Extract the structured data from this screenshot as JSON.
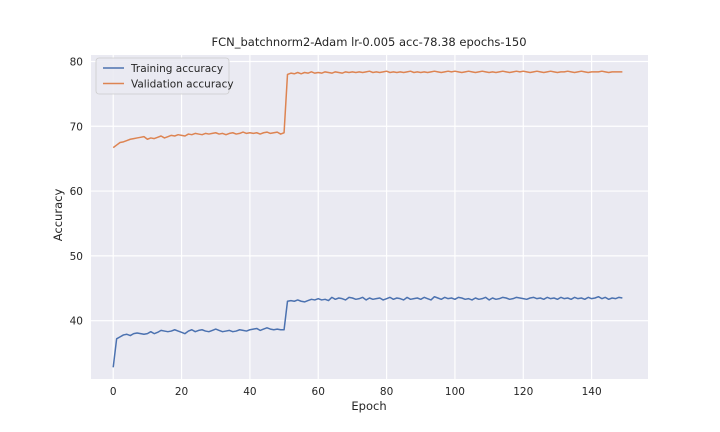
{
  "chart_data": {
    "type": "line",
    "title": "FCN_batchnorm2-Adam lr-0.005 acc-78.38 epochs-150",
    "xlabel": "Epoch",
    "ylabel": "Accuracy",
    "xlim": [
      -6.5,
      156.5
    ],
    "ylim": [
      31,
      81
    ],
    "xticks": [
      0,
      20,
      40,
      60,
      80,
      100,
      120,
      140
    ],
    "yticks": [
      40,
      50,
      60,
      70,
      80
    ],
    "grid": true,
    "legend_position": "top-left",
    "series": [
      {
        "name": "Training accuracy",
        "color": "#4c72b0",
        "values": [
          32.8,
          37.2,
          37.5,
          37.8,
          37.9,
          37.7,
          38.0,
          38.1,
          38.0,
          37.9,
          38.0,
          38.3,
          38.0,
          38.2,
          38.5,
          38.4,
          38.3,
          38.4,
          38.6,
          38.4,
          38.2,
          38.0,
          38.4,
          38.6,
          38.3,
          38.5,
          38.6,
          38.4,
          38.3,
          38.5,
          38.7,
          38.5,
          38.3,
          38.4,
          38.5,
          38.3,
          38.4,
          38.6,
          38.5,
          38.4,
          38.6,
          38.7,
          38.8,
          38.5,
          38.7,
          38.9,
          38.7,
          38.6,
          38.7,
          38.6,
          38.6,
          43.0,
          43.1,
          43.0,
          43.2,
          43.0,
          42.9,
          43.1,
          43.3,
          43.2,
          43.4,
          43.2,
          43.3,
          43.1,
          43.6,
          43.3,
          43.5,
          43.4,
          43.2,
          43.6,
          43.5,
          43.3,
          43.4,
          43.6,
          43.2,
          43.5,
          43.3,
          43.4,
          43.5,
          43.2,
          43.4,
          43.6,
          43.3,
          43.5,
          43.4,
          43.2,
          43.6,
          43.3,
          43.4,
          43.5,
          43.3,
          43.6,
          43.4,
          43.2,
          43.7,
          43.5,
          43.3,
          43.6,
          43.4,
          43.5,
          43.3,
          43.6,
          43.5,
          43.3,
          43.4,
          43.2,
          43.5,
          43.3,
          43.4,
          43.6,
          43.2,
          43.5,
          43.3,
          43.4,
          43.6,
          43.5,
          43.3,
          43.4,
          43.6,
          43.5,
          43.4,
          43.3,
          43.5,
          43.6,
          43.4,
          43.5,
          43.3,
          43.6,
          43.4,
          43.5,
          43.3,
          43.6,
          43.4,
          43.5,
          43.3,
          43.6,
          43.4,
          43.5,
          43.3,
          43.6,
          43.4,
          43.5,
          43.7,
          43.4,
          43.6,
          43.3,
          43.5,
          43.4,
          43.6,
          43.5
        ]
      },
      {
        "name": "Validation accuracy",
        "color": "#dd8452",
        "values": [
          66.7,
          67.1,
          67.5,
          67.6,
          67.8,
          68.0,
          68.1,
          68.2,
          68.3,
          68.4,
          68.0,
          68.2,
          68.1,
          68.3,
          68.5,
          68.2,
          68.4,
          68.6,
          68.5,
          68.7,
          68.6,
          68.5,
          68.8,
          68.7,
          68.9,
          68.8,
          68.7,
          68.9,
          68.8,
          68.9,
          69.0,
          68.8,
          68.9,
          68.7,
          68.9,
          69.0,
          68.8,
          68.9,
          69.1,
          68.9,
          69.0,
          68.9,
          69.0,
          68.8,
          69.0,
          69.1,
          68.9,
          69.0,
          69.1,
          68.8,
          69.0,
          78.0,
          78.2,
          78.1,
          78.3,
          78.1,
          78.3,
          78.2,
          78.4,
          78.2,
          78.3,
          78.2,
          78.4,
          78.3,
          78.2,
          78.4,
          78.3,
          78.2,
          78.4,
          78.3,
          78.4,
          78.3,
          78.4,
          78.3,
          78.4,
          78.5,
          78.3,
          78.4,
          78.3,
          78.4,
          78.5,
          78.3,
          78.4,
          78.3,
          78.4,
          78.3,
          78.4,
          78.5,
          78.3,
          78.4,
          78.3,
          78.4,
          78.3,
          78.4,
          78.5,
          78.4,
          78.3,
          78.4,
          78.5,
          78.4,
          78.5,
          78.4,
          78.3,
          78.4,
          78.5,
          78.4,
          78.3,
          78.4,
          78.5,
          78.4,
          78.3,
          78.4,
          78.3,
          78.4,
          78.5,
          78.4,
          78.3,
          78.4,
          78.5,
          78.4,
          78.5,
          78.4,
          78.3,
          78.4,
          78.5,
          78.4,
          78.3,
          78.4,
          78.5,
          78.4,
          78.3,
          78.4,
          78.4,
          78.5,
          78.4,
          78.3,
          78.4,
          78.5,
          78.4,
          78.3,
          78.4,
          78.4,
          78.4,
          78.5,
          78.4,
          78.3,
          78.4,
          78.4,
          78.4,
          78.4
        ]
      }
    ]
  }
}
